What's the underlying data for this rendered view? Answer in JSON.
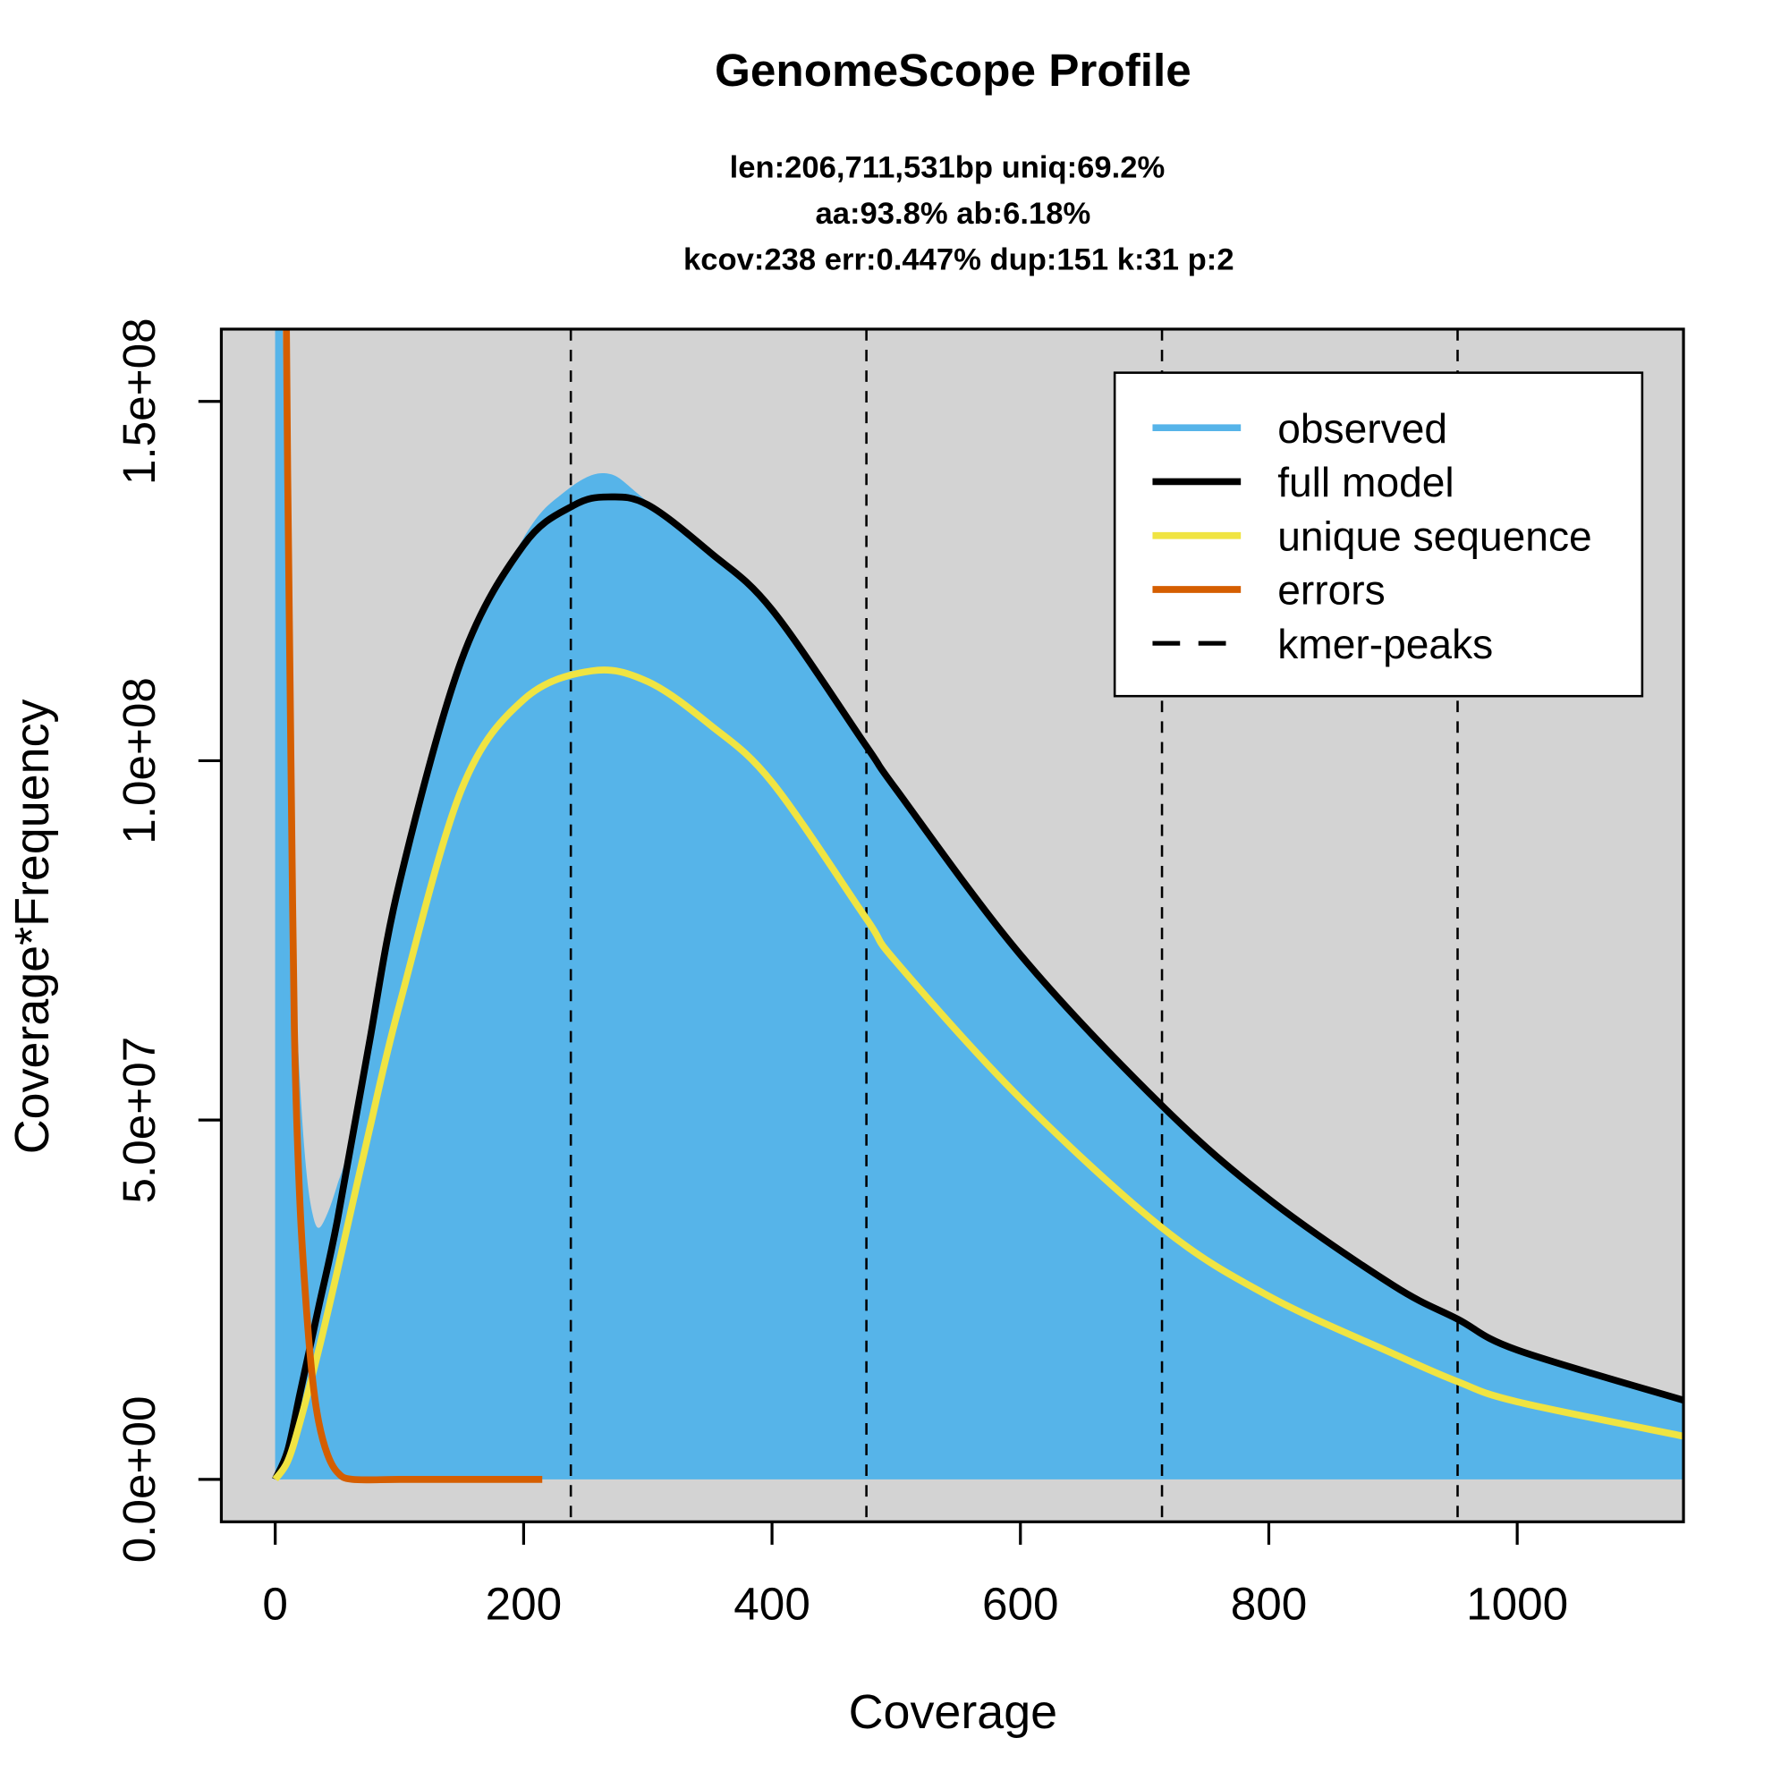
{
  "chart_data": {
    "type": "area",
    "title": "GenomeScope Profile",
    "subtitle_lines": [
      "len:206,711,531bp uniq:69.2%",
      "aa:93.8% ab:6.18%",
      "kcov:238 err:0.447%  dup:151  k:31 p:2"
    ],
    "xlabel": "Coverage",
    "ylabel": "Coverage*Frequency",
    "xlim": [
      -43,
      1134
    ],
    "ylim": [
      0,
      160000000
    ],
    "xticks": [
      0,
      200,
      400,
      600,
      800,
      1000
    ],
    "xtick_labels": [
      "0",
      "200",
      "400",
      "600",
      "800",
      "1000"
    ],
    "yticks": [
      0,
      50000000,
      100000000,
      150000000
    ],
    "ytick_labels": [
      "0.0e+00",
      "5.0e+07",
      "1.0e+08",
      "1.5e+08"
    ],
    "background": "#d3d3d3",
    "legend_position": "top-right",
    "legend": [
      {
        "label": "observed",
        "color": "#56b4e9",
        "style": "solid"
      },
      {
        "label": "full model",
        "color": "#000000",
        "style": "solid"
      },
      {
        "label": "unique sequence",
        "color": "#f0e442",
        "style": "solid"
      },
      {
        "label": "errors",
        "color": "#d55e00",
        "style": "solid"
      },
      {
        "label": "kmer-peaks",
        "color": "#000000",
        "style": "dashed"
      }
    ],
    "kmer_peaks": [
      238,
      476,
      714,
      952
    ],
    "series": [
      {
        "name": "observed",
        "color": "#56b4e9",
        "x": [
          0,
          3,
          6,
          10,
          15,
          20,
          25,
          30,
          35,
          42,
          50,
          60,
          80,
          100,
          150,
          200,
          230,
          265,
          300,
          400,
          476,
          500,
          600,
          714,
          800,
          900,
          952,
          1000,
          1134
        ],
        "y": [
          160000000,
          160000000,
          160000000,
          110000000,
          75000000,
          55000000,
          43000000,
          37000000,
          35000000,
          37000000,
          41000000,
          47000000,
          65000000,
          85000000,
          114000000,
          131000000,
          137000000,
          140000000,
          136000000,
          121000000,
          102000000,
          96000000,
          73000000,
          52000000,
          39000000,
          27000000,
          22300000,
          18000000,
          11000000
        ]
      },
      {
        "name": "full model",
        "color": "#000000",
        "x": [
          0,
          10,
          20,
          35,
          50,
          75,
          100,
          150,
          200,
          240,
          268,
          300,
          350,
          400,
          476,
          500,
          600,
          714,
          800,
          900,
          952,
          1000,
          1134
        ],
        "y": [
          0,
          4000000,
          12000000,
          24000000,
          36000000,
          60000000,
          83000000,
          114000000,
          130000000,
          135500000,
          136700000,
          135600000,
          129000000,
          121000000,
          102000000,
          96000000,
          73000000,
          52000000,
          39000000,
          27000000,
          22300000,
          18000000,
          11000000
        ]
      },
      {
        "name": "unique sequence",
        "color": "#f0e442",
        "x": [
          0,
          10,
          20,
          35,
          50,
          75,
          100,
          150,
          200,
          255,
          300,
          350,
          400,
          476,
          500,
          600,
          714,
          800,
          900,
          952,
          1000,
          1134
        ],
        "y": [
          0,
          2500000,
          8000000,
          18000000,
          29000000,
          48000000,
          66000000,
          96000000,
          108500000,
          112500000,
          111000000,
          105000000,
          97000000,
          78000000,
          72000000,
          53000000,
          35000000,
          25500000,
          17500000,
          13600000,
          10800000,
          6000000
        ]
      },
      {
        "name": "errors",
        "color": "#d55e00",
        "x": [
          9,
          10,
          12,
          14,
          16,
          20,
          25,
          30,
          35,
          42,
          50,
          62,
          100,
          150,
          215
        ],
        "y": [
          160000000,
          140000000,
          110000000,
          80000000,
          58000000,
          38000000,
          24000000,
          14000000,
          8000000,
          3500000,
          1000000,
          0,
          0,
          0,
          0
        ]
      }
    ]
  }
}
